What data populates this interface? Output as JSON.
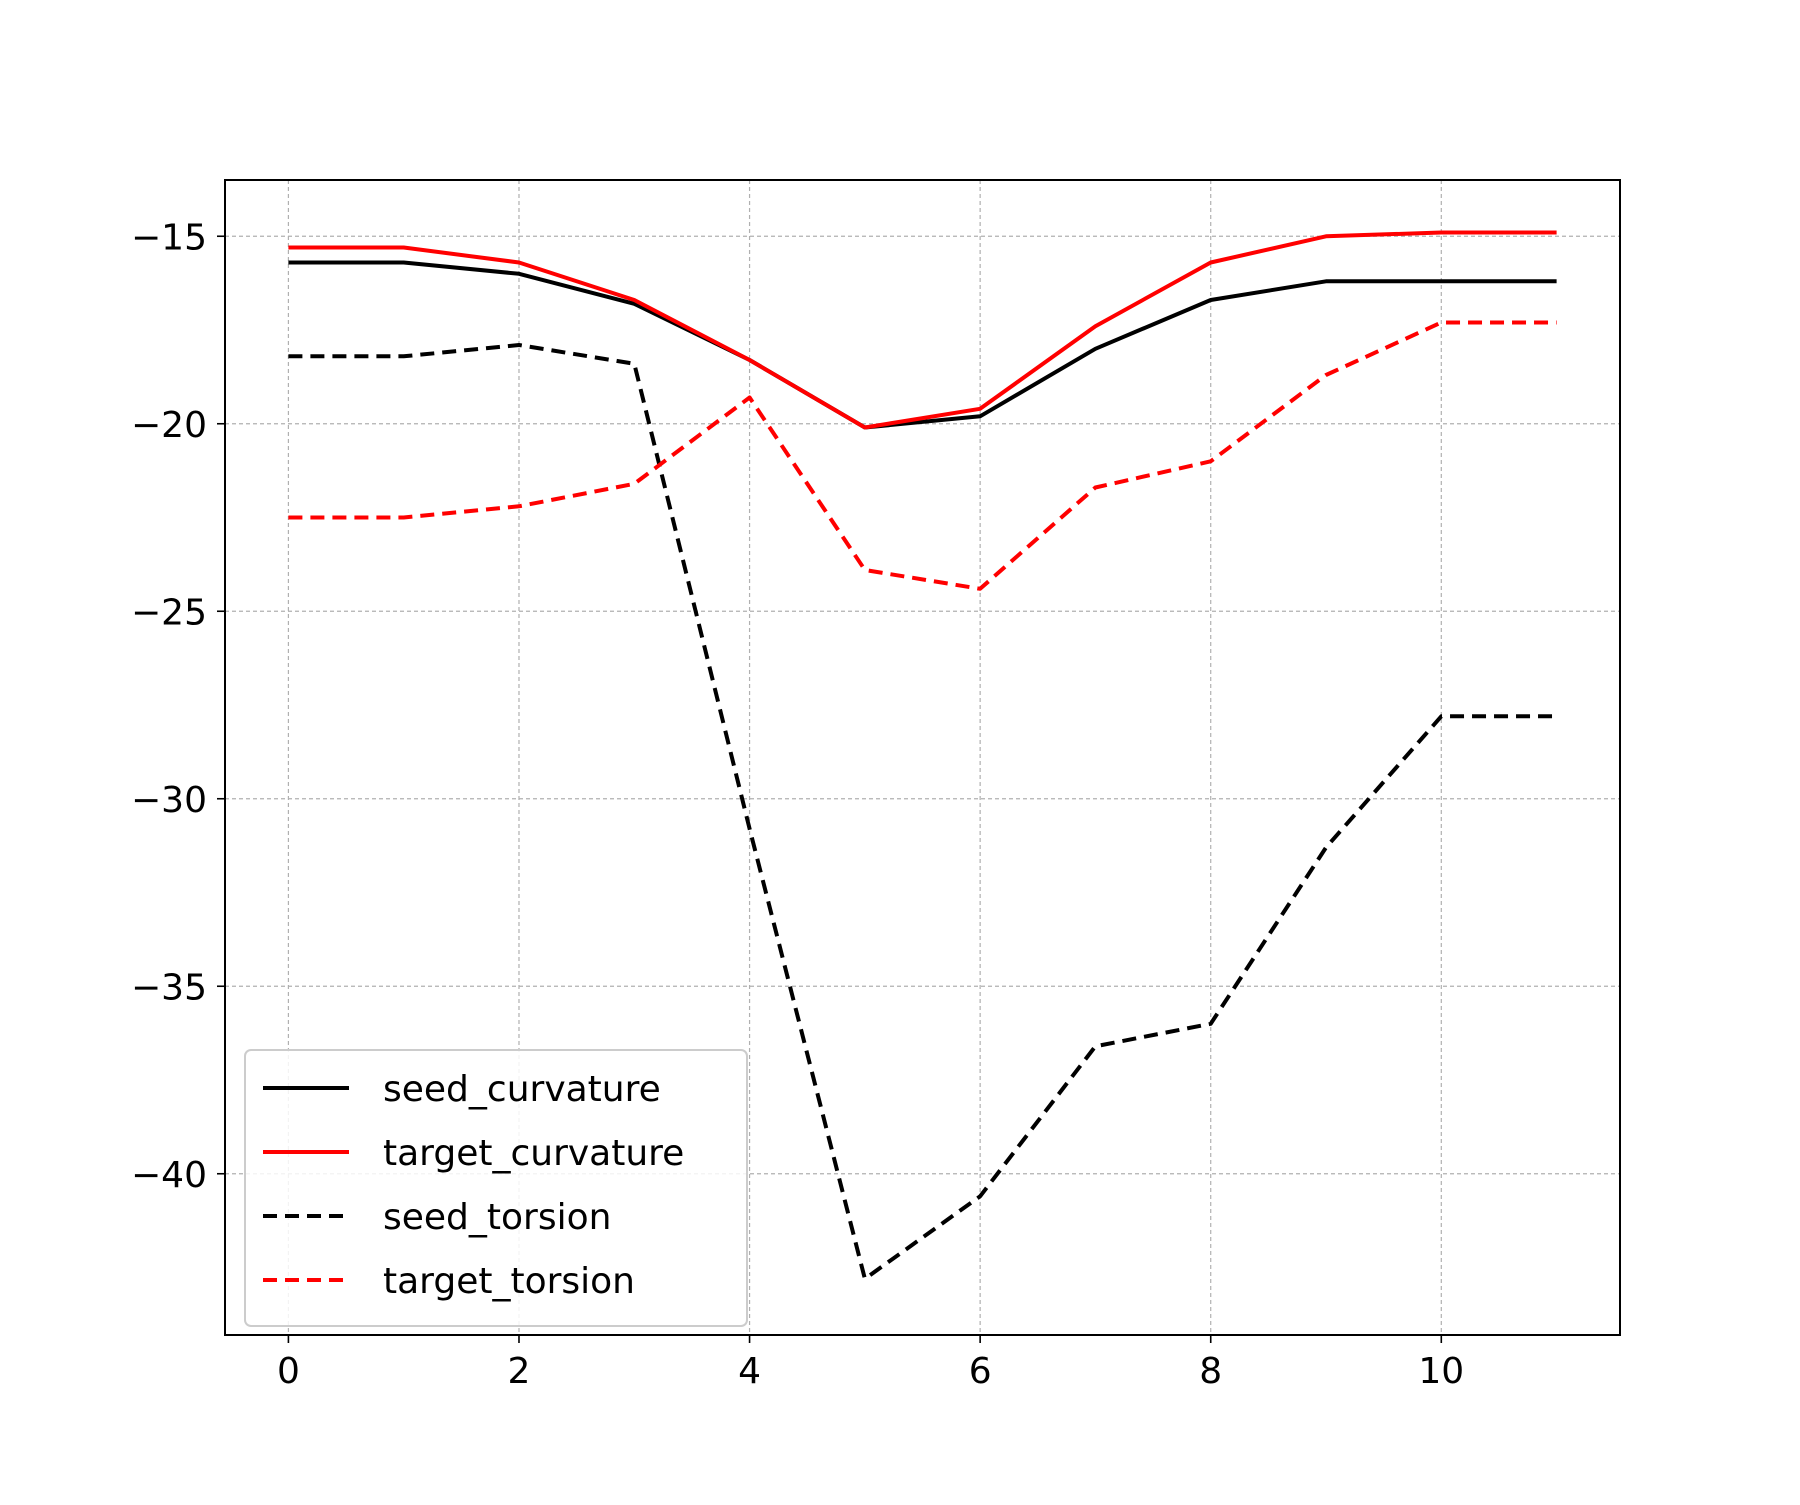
{
  "chart_data": {
    "type": "line",
    "title": "",
    "xlabel": "",
    "ylabel": "",
    "xlim": [
      -0.55,
      11.55
    ],
    "ylim": [
      -44.3,
      -13.5
    ],
    "xticks": [
      0,
      2,
      4,
      6,
      8,
      10
    ],
    "xtick_labels": [
      "0",
      "2",
      "4",
      "6",
      "8",
      "10"
    ],
    "yticks": [
      -15,
      -20,
      -25,
      -30,
      -35,
      -40
    ],
    "ytick_labels": [
      "−15",
      "−20",
      "−25",
      "−30",
      "−35",
      "−40"
    ],
    "grid": true,
    "legend_position": "lower-left",
    "x": [
      0,
      1,
      2,
      3,
      4,
      5,
      6,
      7,
      8,
      9,
      10,
      11
    ],
    "series": [
      {
        "name": "seed_curvature",
        "color": "#000000",
        "style": "solid",
        "values": [
          -15.7,
          -15.7,
          -16.0,
          -16.8,
          -18.3,
          -20.1,
          -19.8,
          -18.0,
          -16.7,
          -16.2,
          -16.2,
          -16.2
        ]
      },
      {
        "name": "target_curvature",
        "color": "#ff0000",
        "style": "solid",
        "values": [
          -15.3,
          -15.3,
          -15.7,
          -16.7,
          -18.3,
          -20.1,
          -19.6,
          -17.4,
          -15.7,
          -15.0,
          -14.9,
          -14.9
        ]
      },
      {
        "name": "seed_torsion",
        "color": "#000000",
        "style": "dashed",
        "values": [
          -18.2,
          -18.2,
          -17.9,
          -18.4,
          -30.8,
          -42.8,
          -40.6,
          -36.6,
          -36.0,
          -31.3,
          -27.8,
          -27.8
        ]
      },
      {
        "name": "target_torsion",
        "color": "#ff0000",
        "style": "dashed",
        "values": [
          -22.5,
          -22.5,
          -22.2,
          -21.6,
          -19.3,
          -23.9,
          -24.4,
          -21.7,
          -21.0,
          -18.7,
          -17.3,
          -17.3
        ]
      }
    ]
  }
}
